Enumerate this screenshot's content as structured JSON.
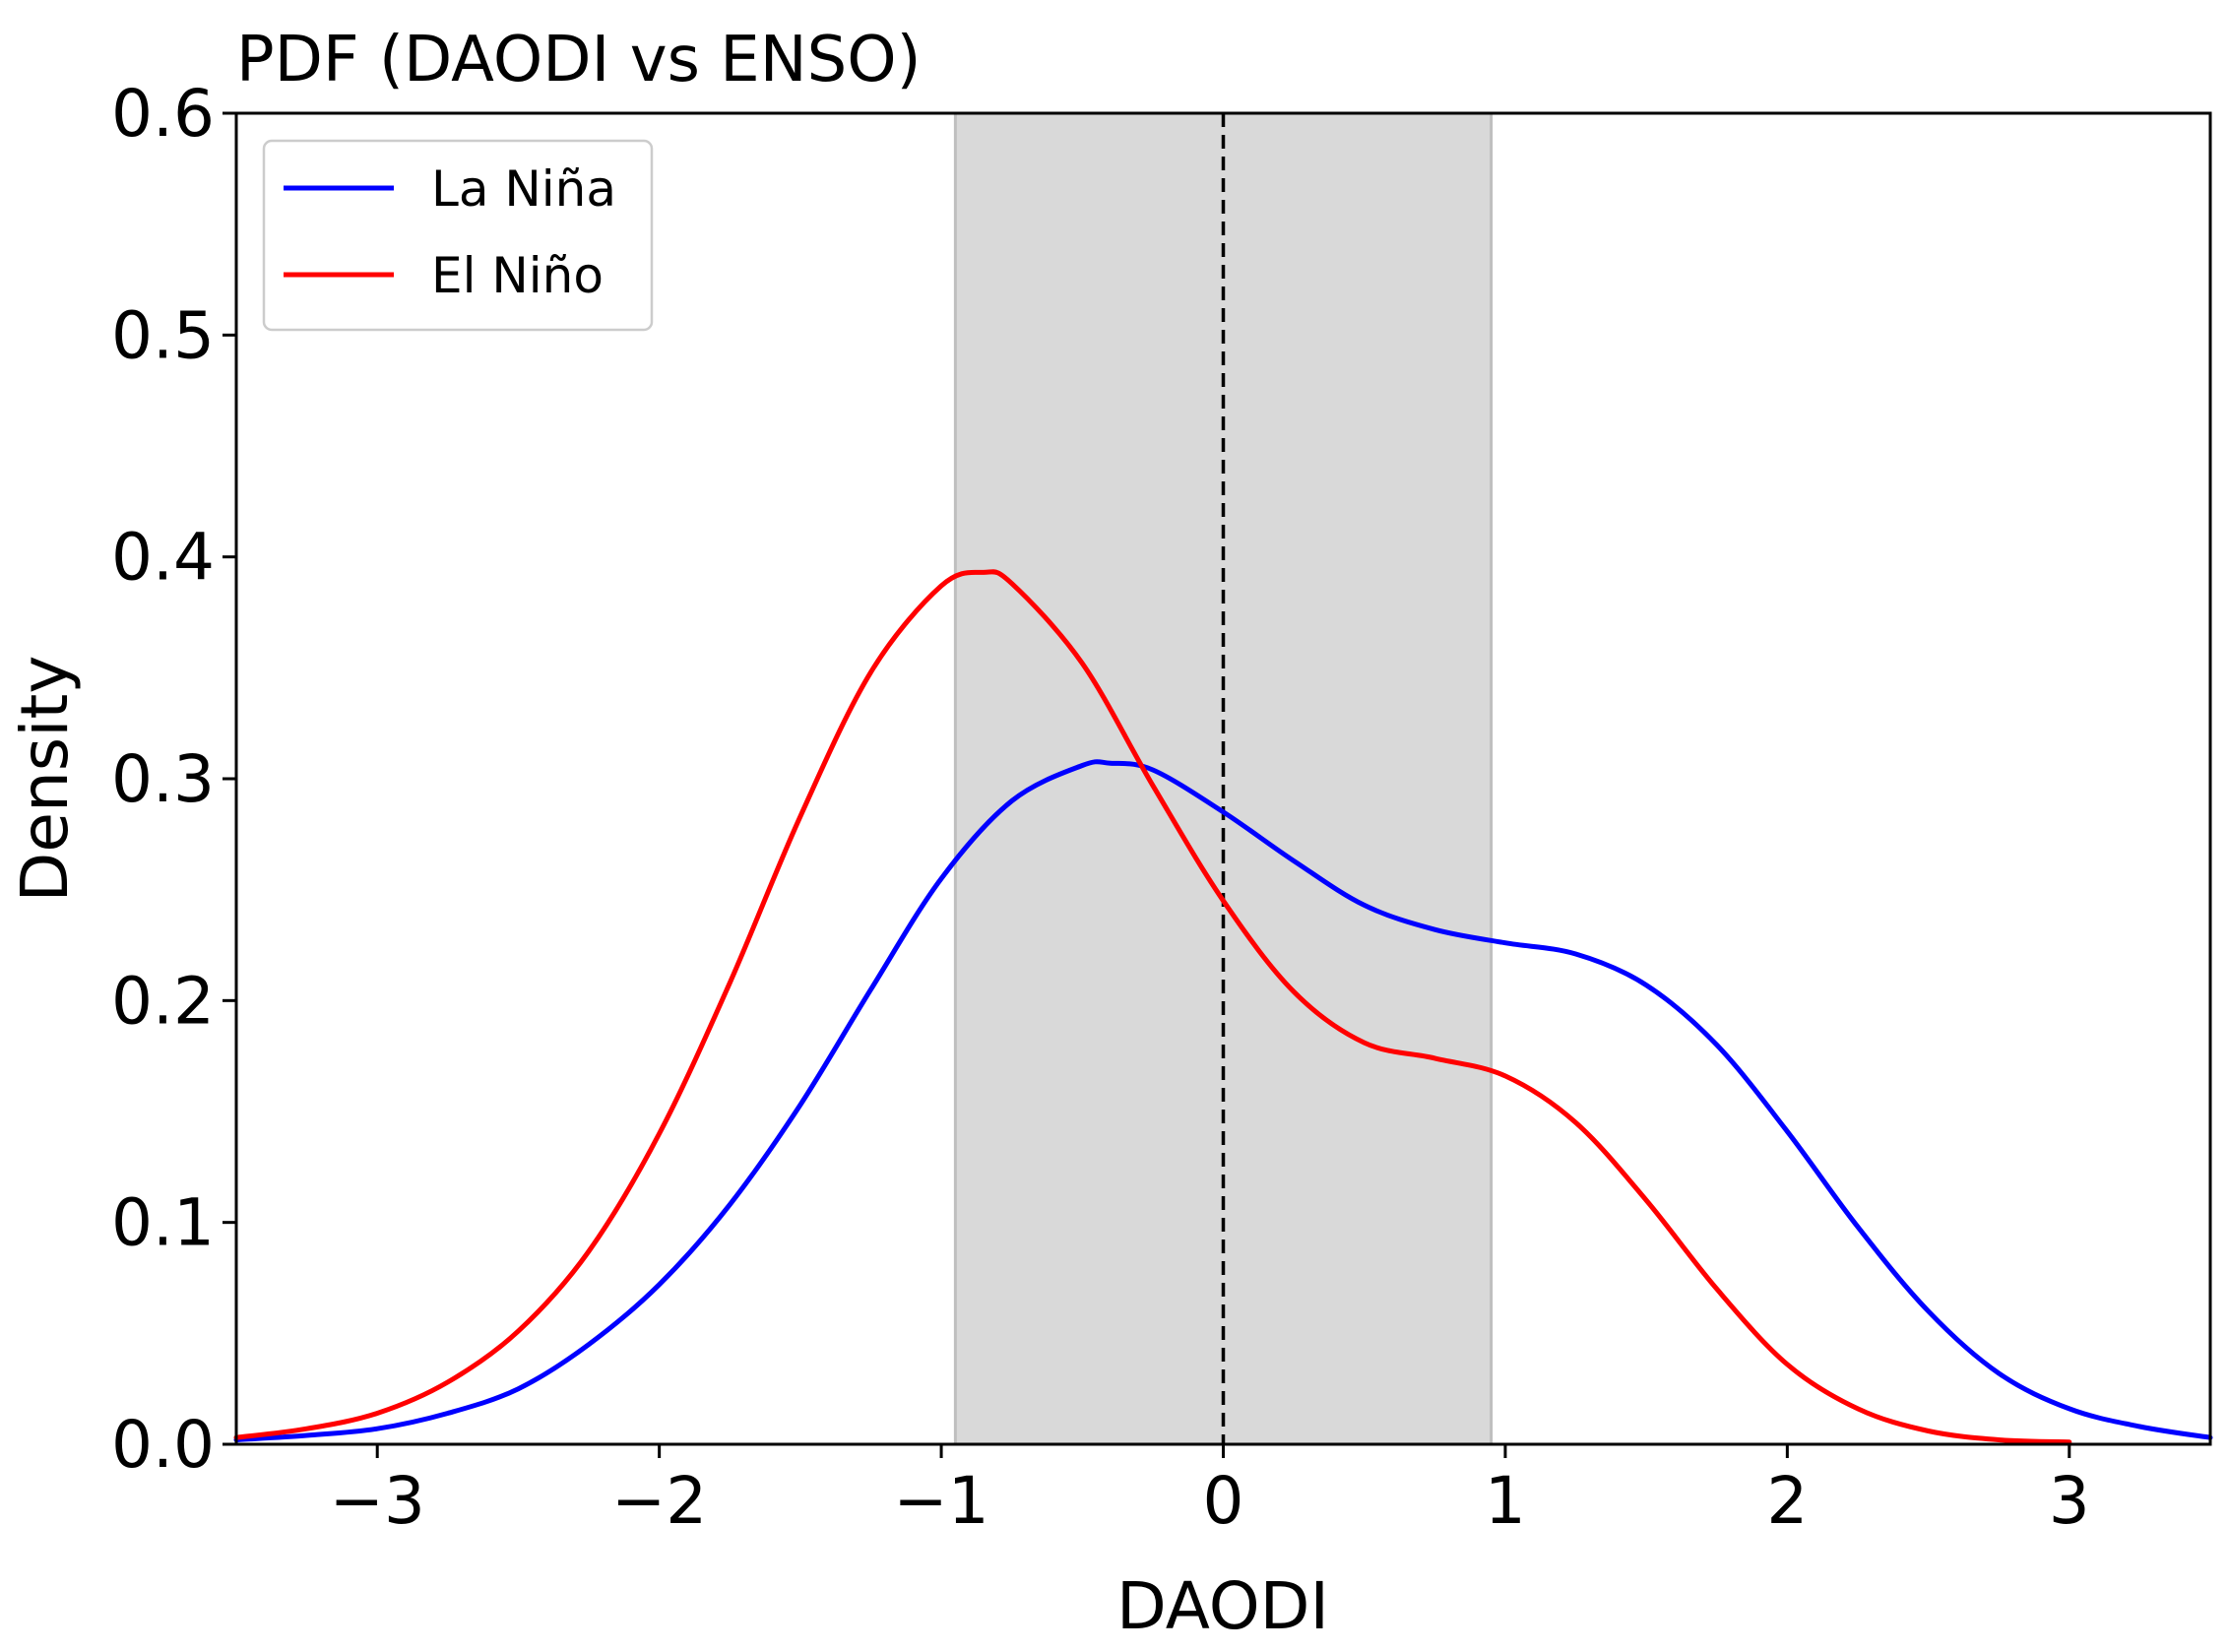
{
  "chart_data": {
    "type": "line",
    "title": "PDF (DAODI vs ENSO)",
    "xlabel": "DAODI",
    "ylabel": "Density",
    "xlim": [
      -3.5,
      3.5
    ],
    "ylim": [
      0,
      0.6
    ],
    "xticks": [
      -3,
      -2,
      -1,
      0,
      1,
      2,
      3
    ],
    "xtick_labels": [
      "−3",
      "−2",
      "−1",
      "0",
      "1",
      "2",
      "3"
    ],
    "yticks": [
      0.0,
      0.1,
      0.2,
      0.3,
      0.4,
      0.5,
      0.6
    ],
    "ytick_labels": [
      "0.0",
      "0.1",
      "0.2",
      "0.3",
      "0.4",
      "0.5",
      "0.6"
    ],
    "grid": false,
    "legend_position": "top-left",
    "shaded_band": {
      "x": [
        -0.95,
        0.95
      ],
      "color": "#d9d9d9"
    },
    "reference_line": {
      "x": 0,
      "style": "dashed",
      "color": "#000000"
    },
    "series": [
      {
        "name": "La Niña",
        "color": "#0000ff",
        "x": [
          -3.5,
          -3.25,
          -3.0,
          -2.75,
          -2.5,
          -2.25,
          -2.0,
          -1.75,
          -1.5,
          -1.25,
          -1.0,
          -0.75,
          -0.5,
          -0.4,
          -0.25,
          0.0,
          0.25,
          0.5,
          0.75,
          1.0,
          1.25,
          1.5,
          1.75,
          2.0,
          2.25,
          2.5,
          2.75,
          3.0,
          3.25,
          3.5
        ],
        "y": [
          0.002,
          0.004,
          0.007,
          0.014,
          0.025,
          0.045,
          0.072,
          0.108,
          0.153,
          0.205,
          0.255,
          0.29,
          0.306,
          0.307,
          0.304,
          0.285,
          0.263,
          0.243,
          0.232,
          0.226,
          0.221,
          0.207,
          0.18,
          0.141,
          0.098,
          0.06,
          0.032,
          0.016,
          0.008,
          0.003
        ]
      },
      {
        "name": "El Niño",
        "color": "#ff0000",
        "x": [
          -3.5,
          -3.25,
          -3.0,
          -2.75,
          -2.5,
          -2.25,
          -2.0,
          -1.75,
          -1.5,
          -1.25,
          -1.0,
          -0.85,
          -0.75,
          -0.5,
          -0.25,
          0.0,
          0.25,
          0.5,
          0.75,
          1.0,
          1.25,
          1.5,
          1.75,
          2.0,
          2.25,
          2.5,
          2.75,
          3.0
        ],
        "y": [
          0.003,
          0.007,
          0.014,
          0.028,
          0.051,
          0.087,
          0.14,
          0.208,
          0.283,
          0.348,
          0.387,
          0.393,
          0.388,
          0.352,
          0.297,
          0.245,
          0.204,
          0.181,
          0.174,
          0.166,
          0.145,
          0.11,
          0.07,
          0.036,
          0.016,
          0.006,
          0.002,
          0.001
        ]
      }
    ]
  }
}
